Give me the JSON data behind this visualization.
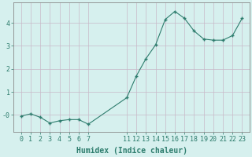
{
  "x_values": [
    0,
    1,
    2,
    3,
    4,
    5,
    6,
    7,
    11,
    12,
    13,
    14,
    15,
    16,
    17,
    18,
    19,
    20,
    21,
    22,
    23
  ],
  "y_values": [
    -0.05,
    0.05,
    -0.1,
    -0.35,
    -0.25,
    -0.2,
    -0.2,
    -0.4,
    0.75,
    1.7,
    2.45,
    3.05,
    4.15,
    4.5,
    4.2,
    3.65,
    3.3,
    3.25,
    3.25,
    3.45,
    4.2
  ],
  "xlabel": "Humidex (Indice chaleur)",
  "line_color": "#2e7d6e",
  "marker_color": "#2e7d6e",
  "bg_color": "#d6f0ee",
  "grid_color": "#c8b8c8",
  "axis_color": "#555555",
  "tick_label_color": "#2e7d6e",
  "xlabel_color": "#2e7d6e",
  "ylim": [
    -0.75,
    4.9
  ],
  "yticks": [
    0,
    1,
    2,
    3,
    4
  ],
  "ytick_labels": [
    "-0",
    "1",
    "2",
    "3",
    "4"
  ],
  "xtick_positions": [
    0,
    1,
    2,
    3,
    4,
    5,
    6,
    7,
    11,
    12,
    13,
    14,
    15,
    16,
    17,
    18,
    19,
    20,
    21,
    22,
    23
  ],
  "xtick_labels": [
    "0",
    "1",
    "2",
    "3",
    "4",
    "5",
    "6",
    "7",
    "11",
    "12",
    "13",
    "14",
    "15",
    "16",
    "17",
    "18",
    "19",
    "20",
    "21",
    "22",
    "23"
  ],
  "font_family": "monospace",
  "font_size_tick": 6,
  "font_size_label": 7
}
